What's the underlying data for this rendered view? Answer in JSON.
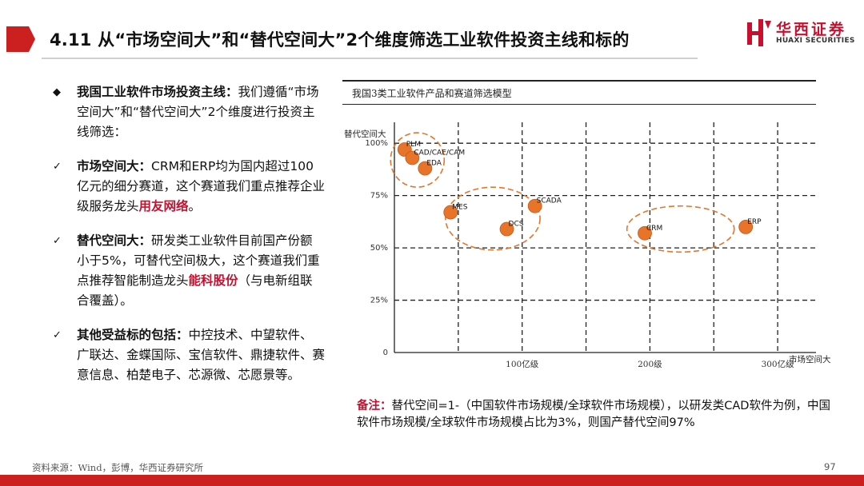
{
  "header": {
    "title": "4.11 从“市场空间大”和“替代空间大”2个维度筛选工业软件投资主线和标的",
    "logo_cn": "华西证券",
    "logo_en": "HUAXI SECURITIES"
  },
  "bullets": [
    {
      "mark": "◆",
      "label": "我国工业软件市场投资主线：",
      "text": "我们遵循“市场空间大”和“替代空间大”2个维度进行投资主线筛选：",
      "highlight": "",
      "tail": ""
    },
    {
      "mark": "✓",
      "label": "市场空间大：",
      "text": "CRM和ERP均为国内超过100亿元的细分赛道，这个赛道我们重点推荐企业级服务龙头",
      "highlight": "用友网络",
      "tail": "。"
    },
    {
      "mark": "✓",
      "label": "替代空间大：",
      "text": "研发类工业软件目前国产份额小于5%，可替代空间极大，这个赛道我们重点推荐智能制造龙头",
      "highlight": "能科股份",
      "tail": "（与电新组联合覆盖）。"
    },
    {
      "mark": "✓",
      "label": "其他受益标的包括：",
      "text": "中控技术、中望软件、广联达、金蝶国际、宝信软件、鼎捷软件、赛意信息、柏楚电子、芯源微、芯愿景等。",
      "highlight": "",
      "tail": ""
    }
  ],
  "chart_data": {
    "type": "scatter",
    "title": "我国3类工业软件产品和赛道筛选模型",
    "xlabel": "市场空间大",
    "ylabel": "替代空间大",
    "x_ticks": [
      "100亿级",
      "200级",
      "300亿级"
    ],
    "y_ticks": [
      "0",
      "25%",
      "50%",
      "75%",
      "100%"
    ],
    "xlim": [
      0,
      330
    ],
    "ylim": [
      0,
      110
    ],
    "grid": true,
    "point_color": "#e8742a",
    "group_color": "#e8742a",
    "points": [
      {
        "label": "PLM",
        "x": 8,
        "y": 97
      },
      {
        "label": "CAD/CAE/CAM",
        "x": 14,
        "y": 93
      },
      {
        "label": "EDA",
        "x": 24,
        "y": 88
      },
      {
        "label": "MES",
        "x": 44,
        "y": 67
      },
      {
        "label": "DCS",
        "x": 88,
        "y": 59
      },
      {
        "label": "SCADA",
        "x": 110,
        "y": 70
      },
      {
        "label": "CRM",
        "x": 196,
        "y": 57
      },
      {
        "label": "ERP",
        "x": 275,
        "y": 60
      }
    ],
    "groups": [
      {
        "cx": 18,
        "cy": 92,
        "rx": 21,
        "ry": 13
      },
      {
        "cx": 77,
        "cy": 64,
        "rx": 37,
        "ry": 15
      },
      {
        "cx": 224,
        "cy": 59,
        "rx": 42,
        "ry": 11
      }
    ]
  },
  "note": {
    "label": "备注：",
    "text": "替代空间=1-（中国软件市场规模/全球软件市场规模），以研发类CAD软件为例，中国软件市场规模/全球软件市场规模占比为3%，则国产替代空间97%"
  },
  "footer": {
    "source": "资料来源：Wind，彭博，华西证券研究所",
    "page": "97"
  },
  "colors": {
    "brand_red": "#cc1f1f",
    "accent_red": "#c8102e",
    "point_orange": "#e8742a"
  }
}
